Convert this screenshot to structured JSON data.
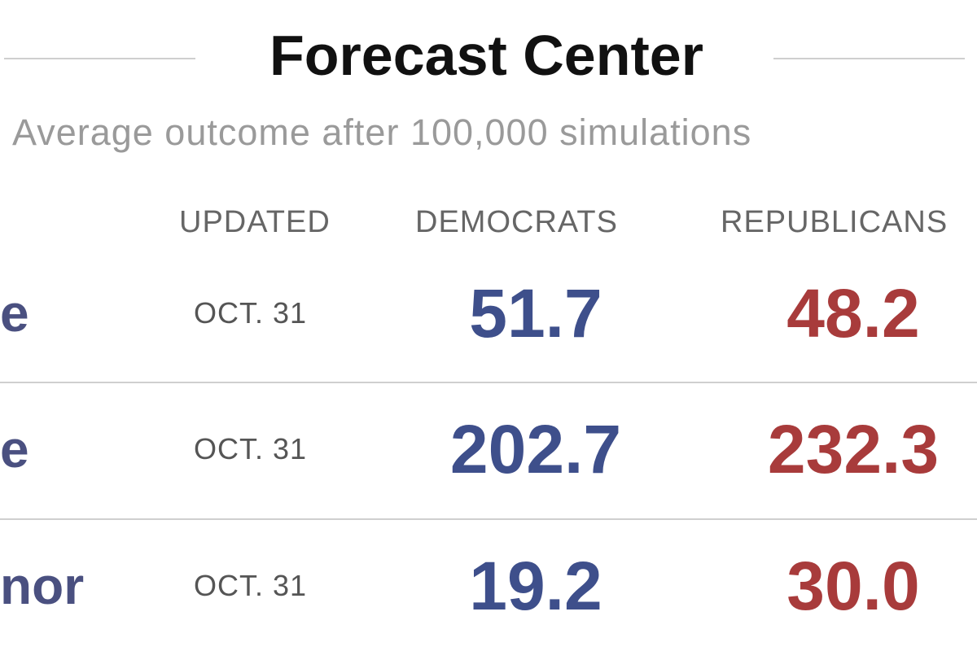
{
  "header": {
    "title": "Forecast Center",
    "subtitle": "Average outcome after 100,000 simulations"
  },
  "table": {
    "columns": [
      "UPDATED",
      "DEMOCRATS",
      "REPUBLICANS"
    ],
    "rows": [
      [
        "e",
        "OCT. 31",
        "51.7",
        "48.2"
      ],
      [
        "e",
        "OCT. 31",
        "202.7",
        "232.3"
      ],
      [
        "nor",
        "OCT. 31",
        "19.2",
        "30.0"
      ]
    ]
  }
}
